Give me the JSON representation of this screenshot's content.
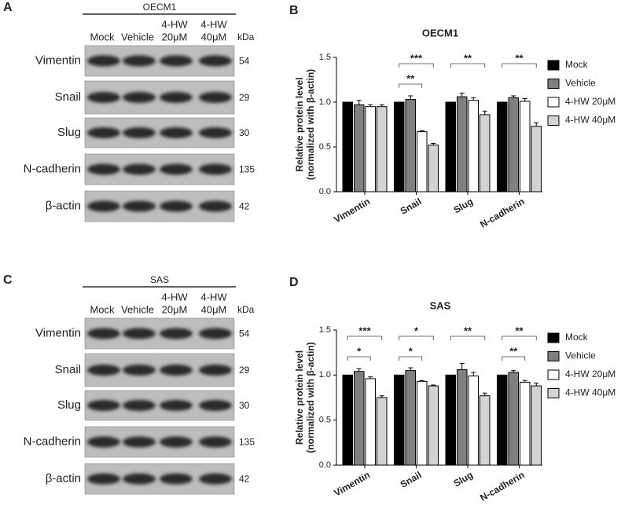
{
  "blots": [
    {
      "panel_label": "A",
      "title": "OECM1",
      "lanes": [
        [
          "Mock"
        ],
        [
          "Vehicle"
        ],
        [
          "4-HW",
          "20μM"
        ],
        [
          "4-HW",
          "40μM"
        ]
      ],
      "kda_label": "kDa",
      "rows": [
        {
          "protein": "Vimentin",
          "kda": 54
        },
        {
          "protein": "Snail",
          "kda": 29
        },
        {
          "protein": "Slug",
          "kda": 30
        },
        {
          "protein": "N-cadherin",
          "kda": 135
        },
        {
          "protein": "β-actin",
          "kda": 42
        }
      ]
    },
    {
      "panel_label": "C",
      "title": "SAS",
      "lanes": [
        [
          "Mock"
        ],
        [
          "Vehicle"
        ],
        [
          "4-HW",
          "20μM"
        ],
        [
          "4-HW",
          "40μM"
        ]
      ],
      "kda_label": "kDa",
      "rows": [
        {
          "protein": "Vimentin",
          "kda": 54
        },
        {
          "protein": "Snail",
          "kda": 29
        },
        {
          "protein": "Slug",
          "kda": 30
        },
        {
          "protein": "N-cadherin",
          "kda": 135
        },
        {
          "protein": "β-actin",
          "kda": 42
        }
      ]
    }
  ],
  "chart_data": [
    {
      "type": "bar",
      "panel_label": "B",
      "title": "OECM1",
      "ylabel": [
        "Relative protein level",
        "(normalized with β-actin)"
      ],
      "categories": [
        "Vimentin",
        "Snail",
        "Slug",
        "N-cadherin"
      ],
      "series": [
        {
          "name": "Mock",
          "color": "#000000",
          "values": [
            1,
            1,
            1,
            1
          ],
          "errors": [
            0,
            0,
            0,
            0
          ]
        },
        {
          "name": "Vehicle",
          "color": "#808080",
          "values": [
            0.97,
            1.03,
            1.06,
            1.05
          ],
          "errors": [
            0.05,
            0.04,
            0.04,
            0.02
          ]
        },
        {
          "name": "4-HW 20μM",
          "color": "#ffffff",
          "values": [
            0.95,
            0.67,
            1.02,
            1.01
          ],
          "errors": [
            0.02,
            0.01,
            0.03,
            0.03
          ]
        },
        {
          "name": "4-HW 40μM",
          "color": "#d3d3d3",
          "values": [
            0.95,
            0.52,
            0.86,
            0.73
          ],
          "errors": [
            0.02,
            0.02,
            0.04,
            0.04
          ]
        }
      ],
      "annotations": [
        {
          "category": "Snail",
          "between": [
            "Mock",
            "4-HW 40μM"
          ],
          "text": "***"
        },
        {
          "category": "Snail",
          "between": [
            "Mock",
            "4-HW 20μM"
          ],
          "text": "**"
        },
        {
          "category": "Slug",
          "between": [
            "Mock",
            "4-HW 40μM"
          ],
          "text": "**"
        },
        {
          "category": "N-cadherin",
          "between": [
            "Mock",
            "4-HW 40μM"
          ],
          "text": "**"
        }
      ],
      "ylim": [
        0,
        1.5
      ],
      "yticks": [
        {
          "value": 0,
          "label": "0.0"
        },
        {
          "value": 0.5,
          "label": "0.5"
        },
        {
          "value": 1,
          "label": "1.0"
        },
        {
          "value": 1.5,
          "label": "1.5"
        }
      ]
    },
    {
      "type": "bar",
      "panel_label": "D",
      "title": "SAS",
      "ylabel": [
        "Relative protein level",
        "(normalized with β-actin)"
      ],
      "categories": [
        "Vimentin",
        "Snail",
        "Slug",
        "N-cadherin"
      ],
      "series": [
        {
          "name": "Mock",
          "color": "#000000",
          "values": [
            1,
            1,
            1,
            1
          ],
          "errors": [
            0,
            0,
            0,
            0
          ]
        },
        {
          "name": "Vehicle",
          "color": "#808080",
          "values": [
            1.04,
            1.05,
            1.06,
            1.03
          ],
          "errors": [
            0.03,
            0.03,
            0.07,
            0.02
          ]
        },
        {
          "name": "4-HW 20μM",
          "color": "#ffffff",
          "values": [
            0.96,
            0.93,
            0.99,
            0.92
          ],
          "errors": [
            0.02,
            0.01,
            0.04,
            0.02
          ]
        },
        {
          "name": "4-HW 40μM",
          "color": "#d3d3d3",
          "values": [
            0.75,
            0.88,
            0.77,
            0.88
          ],
          "errors": [
            0.02,
            0.01,
            0.03,
            0.03
          ]
        }
      ],
      "annotations": [
        {
          "category": "Vimentin",
          "between": [
            "Mock",
            "4-HW 40μM"
          ],
          "text": "***"
        },
        {
          "category": "Vimentin",
          "between": [
            "Mock",
            "4-HW 20μM"
          ],
          "text": "*"
        },
        {
          "category": "Snail",
          "between": [
            "Mock",
            "4-HW 40μM"
          ],
          "text": "*"
        },
        {
          "category": "Snail",
          "between": [
            "Mock",
            "4-HW 20μM"
          ],
          "text": "*"
        },
        {
          "category": "Slug",
          "between": [
            "Mock",
            "4-HW 40μM"
          ],
          "text": "**"
        },
        {
          "category": "N-cadherin",
          "between": [
            "Mock",
            "4-HW 40μM"
          ],
          "text": "**"
        },
        {
          "category": "N-cadherin",
          "between": [
            "Mock",
            "4-HW 20μM"
          ],
          "text": "**"
        }
      ],
      "ylim": [
        0,
        1.5
      ],
      "yticks": [
        {
          "value": 0,
          "label": "0.0"
        },
        {
          "value": 0.5,
          "label": "0.5"
        },
        {
          "value": 1,
          "label": "1.0"
        },
        {
          "value": 1.5,
          "label": "1.5"
        }
      ]
    }
  ]
}
